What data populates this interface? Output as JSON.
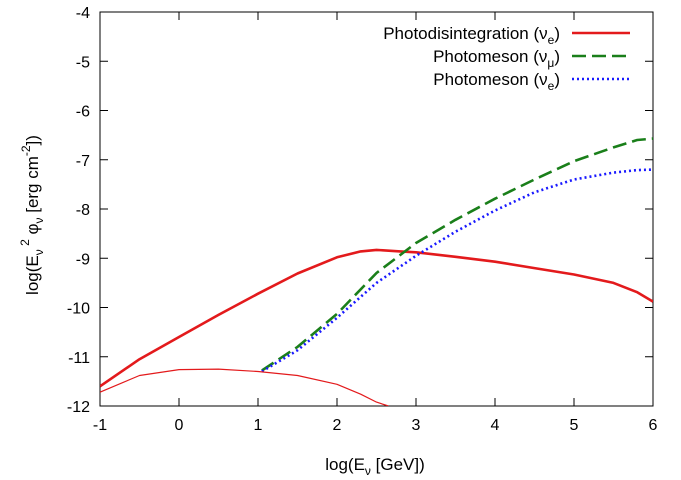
{
  "chart_data": {
    "type": "line",
    "xlabel": "log(E_ν [GeV])",
    "ylabel": "log(E_ν^2 φ_ν [erg cm^-2])",
    "xlim": [
      -1,
      6
    ],
    "ylim": [
      -12,
      -4
    ],
    "x_ticks": [
      "-1",
      "0",
      "1",
      "2",
      "3",
      "4",
      "5",
      "6"
    ],
    "y_ticks": [
      "-12",
      "-11",
      "-10",
      "-9",
      "-8",
      "-7",
      "-6",
      "-5",
      "-4"
    ],
    "grid": false,
    "legend_position": "top-right",
    "series": [
      {
        "name": "Photodisintegration (ν_e)",
        "color": "#e31a1c",
        "style": "solid-thick",
        "legend": true,
        "x": [
          -1.0,
          -0.5,
          0.0,
          0.5,
          1.0,
          1.5,
          2.0,
          2.3,
          2.5,
          2.8,
          3.0,
          3.5,
          4.0,
          4.5,
          5.0,
          5.5,
          5.8,
          6.0
        ],
        "y": [
          -11.6,
          -11.05,
          -10.6,
          -10.15,
          -9.72,
          -9.31,
          -8.98,
          -8.86,
          -8.83,
          -8.86,
          -8.88,
          -8.97,
          -9.07,
          -9.2,
          -9.33,
          -9.5,
          -9.69,
          -9.88
        ]
      },
      {
        "name": "Photomeson (ν_μ)",
        "color": "#1a7f1a",
        "style": "dashed",
        "legend": true,
        "x": [
          1.05,
          1.5,
          2.0,
          2.5,
          3.0,
          3.5,
          4.0,
          4.5,
          5.0,
          5.5,
          5.8,
          6.0
        ],
        "y": [
          -11.28,
          -10.8,
          -10.13,
          -9.3,
          -8.69,
          -8.22,
          -7.79,
          -7.4,
          -7.03,
          -6.75,
          -6.6,
          -6.57
        ]
      },
      {
        "name": "Photomeson (ν_e)",
        "color": "#1a1aff",
        "style": "dotted",
        "legend": true,
        "x": [
          1.05,
          1.5,
          2.0,
          2.5,
          3.0,
          3.5,
          4.0,
          4.5,
          5.0,
          5.5,
          5.8,
          6.0
        ],
        "y": [
          -11.3,
          -10.87,
          -10.21,
          -9.5,
          -8.95,
          -8.46,
          -8.03,
          -7.66,
          -7.4,
          -7.26,
          -7.21,
          -7.2
        ]
      },
      {
        "name": "",
        "color": "#e31a1c",
        "style": "solid-thin",
        "legend": false,
        "x": [
          -1.0,
          -0.5,
          0.0,
          0.5,
          1.0,
          1.5,
          2.0,
          2.3,
          2.5,
          2.65
        ],
        "y": [
          -11.72,
          -11.38,
          -11.26,
          -11.25,
          -11.3,
          -11.38,
          -11.56,
          -11.76,
          -11.92,
          -12.0
        ]
      }
    ]
  }
}
